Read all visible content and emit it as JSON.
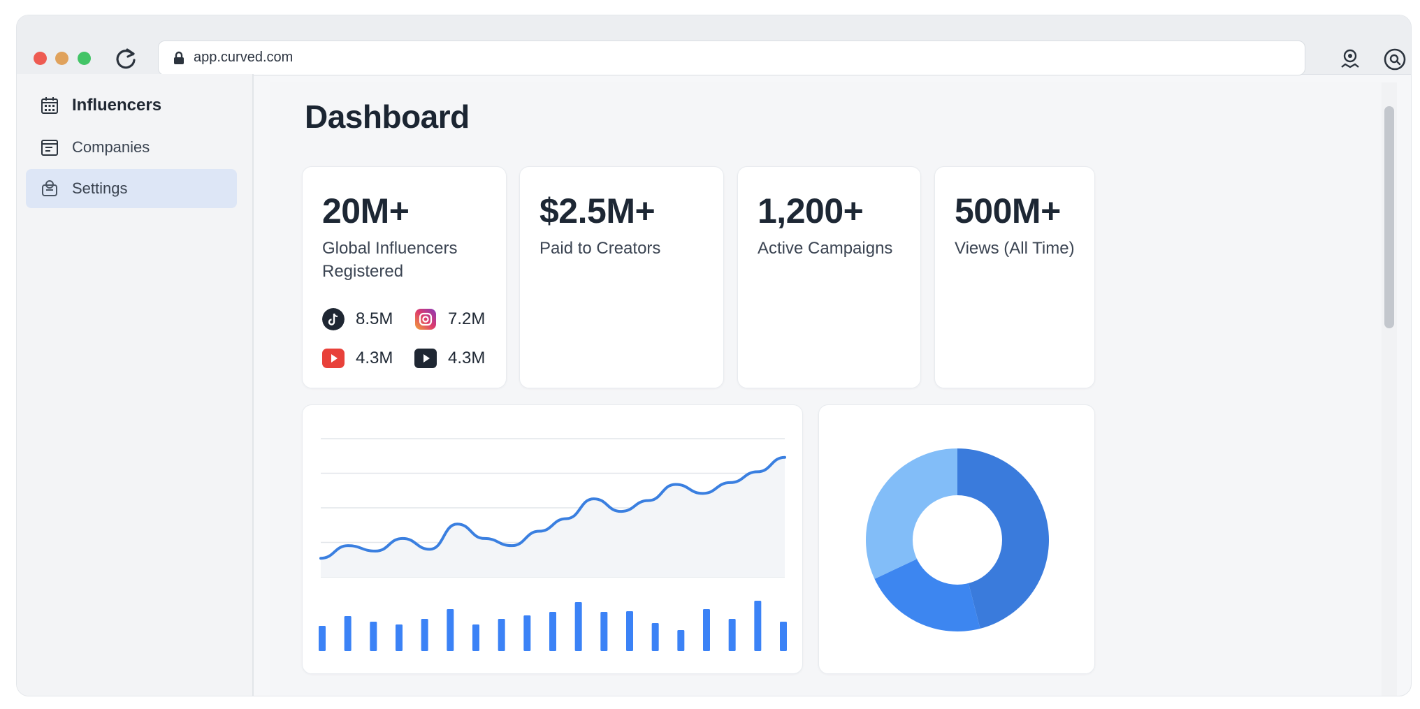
{
  "browser": {
    "url": "app.curved.com",
    "icons": [
      "reload-icon",
      "lock-icon",
      "profile-icon",
      "assistant-icon"
    ]
  },
  "sidebar": {
    "items": [
      {
        "label": "Influencers",
        "icon": "calendar-grid-icon",
        "active": false,
        "bold": true
      },
      {
        "label": "Companies",
        "icon": "list-box-icon",
        "active": false,
        "bold": false
      },
      {
        "label": "Settings",
        "icon": "gear-box-icon",
        "active": true,
        "bold": false
      }
    ]
  },
  "dashboard": {
    "title": "Dashboard",
    "stats": [
      {
        "value": "20M+",
        "label_line1": "Global Influencers",
        "label_line2": "Registered"
      },
      {
        "value": "$2.5M+",
        "label_line1": "Paid to Creators",
        "label_line2": ""
      },
      {
        "value": "1,200+",
        "label_line1": "Active Campaigns",
        "label_line2": ""
      },
      {
        "value": "500M+",
        "label_line1": "Views (All Time)",
        "label_line2": ""
      }
    ],
    "social": [
      {
        "platform": "tiktok",
        "icon": "tiktok-icon",
        "value": "8.5M",
        "color": "#1f2733"
      },
      {
        "platform": "instagram",
        "icon": "instagram-icon",
        "value": "7.2M",
        "color": "#d8406a"
      },
      {
        "platform": "youtube",
        "icon": "youtube-icon",
        "value": "4.3M",
        "color": "#e8413a"
      },
      {
        "platform": "video",
        "icon": "play-icon",
        "value": "4.3M",
        "color": "#1f2733"
      }
    ]
  },
  "colors": {
    "accent": "#3b7ddd",
    "line": "#3a7fe0",
    "bar": "#3b82f6",
    "donut_dark": "#3a7bdc",
    "donut_mid": "#3d86f0",
    "donut_light": "#82bdf8"
  },
  "chart_data": [
    {
      "type": "line",
      "x": [
        1,
        2,
        3,
        4,
        5,
        6,
        7,
        8,
        9,
        10,
        11,
        12,
        13,
        14,
        15,
        16,
        17,
        18
      ],
      "values": [
        22,
        29,
        26,
        33,
        27,
        41,
        33,
        29,
        37,
        44,
        55,
        48,
        54,
        63,
        58,
        64,
        70,
        78
      ],
      "ylim": [
        0,
        100
      ],
      "grid": true,
      "title": "",
      "xlabel": "",
      "ylabel": ""
    },
    {
      "type": "bar",
      "values": [
        36,
        50,
        42,
        38,
        46,
        60,
        38,
        46,
        51,
        56,
        70,
        56,
        57,
        40,
        30,
        60,
        46,
        72,
        42
      ],
      "ylim": [
        0,
        80
      ]
    },
    {
      "type": "pie",
      "donut": true,
      "slices": [
        {
          "value": 46,
          "color": "#3a7bdc"
        },
        {
          "value": 22,
          "color": "#3d86f0"
        },
        {
          "value": 32,
          "color": "#82bdf8"
        }
      ]
    }
  ]
}
